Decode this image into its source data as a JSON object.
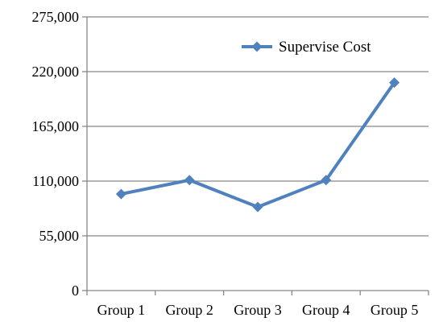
{
  "chart_data": {
    "type": "line",
    "categories": [
      "Group 1",
      "Group 2",
      "Group 3",
      "Group 4",
      "Group 5"
    ],
    "series": [
      {
        "name": "Supervise Cost",
        "values": [
          97000,
          111000,
          84000,
          111000,
          209000
        ],
        "color": "#4F81BD",
        "marker": "diamond"
      }
    ],
    "y_ticks": [
      "0",
      "55,000",
      "110,000",
      "165,000",
      "220,000",
      "275,000"
    ],
    "ylim": [
      0,
      275000
    ],
    "grid": "horizontal",
    "legend_position": "top-right",
    "title": "",
    "xlabel": "",
    "ylabel": ""
  }
}
